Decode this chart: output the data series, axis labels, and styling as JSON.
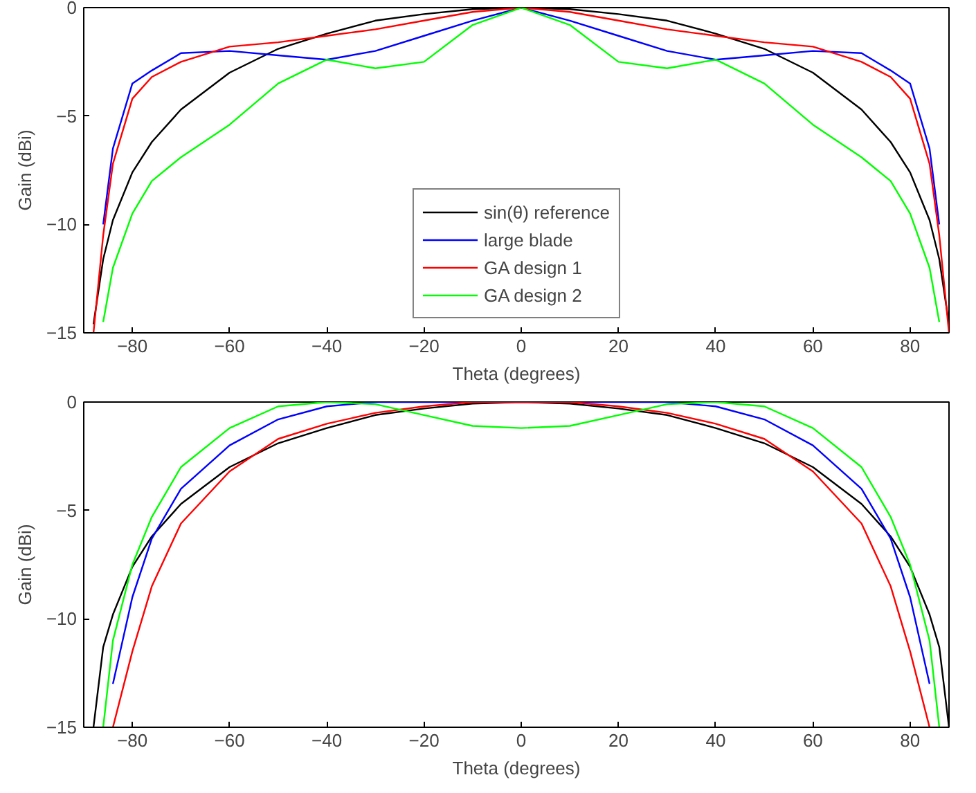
{
  "chart_data": [
    {
      "type": "line",
      "xlabel": "Theta (degrees)",
      "ylabel": "Gain (dBi)",
      "xlim": [
        -90,
        88
      ],
      "ylim": [
        -15,
        0
      ],
      "xticks": [
        -80,
        -60,
        -40,
        -20,
        0,
        20,
        40,
        60,
        80
      ],
      "yticks": [
        -15,
        -10,
        -5,
        0
      ],
      "grid": false,
      "legend": "bottom",
      "line_style": "solid",
      "marker": "none",
      "x": [
        -88,
        -86,
        -84,
        -80,
        -76,
        -70,
        -60,
        -50,
        -40,
        -30,
        -20,
        -10,
        0,
        10,
        20,
        30,
        40,
        50,
        60,
        70,
        76,
        80,
        84,
        86,
        88
      ],
      "series": [
        {
          "name": "sin(θ) reference",
          "color": "#000000",
          "values": [
            -14.6,
            -11.6,
            -9.8,
            -7.6,
            -6.2,
            -4.7,
            -3.0,
            -1.9,
            -1.2,
            -0.6,
            -0.3,
            -0.07,
            0,
            -0.07,
            -0.3,
            -0.6,
            -1.2,
            -1.9,
            -3.0,
            -4.7,
            -6.2,
            -7.6,
            -9.8,
            -11.6,
            -14.6
          ]
        },
        {
          "name": "large blade",
          "color": "#0000ff",
          "values": [
            null,
            -10,
            -6.5,
            -3.5,
            -2.9,
            -2.1,
            -2.0,
            -2.2,
            -2.4,
            -2.0,
            -1.3,
            -0.6,
            0,
            -0.6,
            -1.3,
            -2.0,
            -2.4,
            -2.2,
            -2.0,
            -2.1,
            -2.9,
            -3.5,
            -6.5,
            -10,
            null
          ]
        },
        {
          "name": "GA design 1",
          "color": "#ff0000",
          "values": [
            -15,
            -10.5,
            -7.2,
            -4.2,
            -3.2,
            -2.5,
            -1.8,
            -1.6,
            -1.3,
            -1.0,
            -0.6,
            -0.2,
            0,
            -0.2,
            -0.6,
            -1.0,
            -1.3,
            -1.6,
            -1.8,
            -2.5,
            -3.2,
            -4.2,
            -7.2,
            -10.5,
            -15
          ]
        },
        {
          "name": "GA design 2",
          "color": "#00ff00",
          "values": [
            null,
            -14.5,
            -12,
            -9.5,
            -8.0,
            -6.9,
            -5.4,
            -3.5,
            -2.4,
            -2.8,
            -2.5,
            -0.8,
            0,
            -0.8,
            -2.5,
            -2.8,
            -2.4,
            -3.5,
            -5.4,
            -6.9,
            -8.0,
            -9.5,
            -12,
            -14.5,
            null
          ]
        }
      ]
    },
    {
      "type": "line",
      "xlabel": "Theta (degrees)",
      "ylabel": "Gain (dBi)",
      "xlim": [
        -90,
        88
      ],
      "ylim": [
        -15,
        0
      ],
      "xticks": [
        -80,
        -60,
        -40,
        -20,
        0,
        20,
        40,
        60,
        80
      ],
      "yticks": [
        -15,
        -10,
        -5,
        0
      ],
      "grid": false,
      "legend": false,
      "line_style": "solid",
      "marker": "none",
      "x": [
        -88,
        -86,
        -84,
        -80,
        -76,
        -70,
        -60,
        -50,
        -40,
        -30,
        -20,
        -10,
        0,
        10,
        20,
        30,
        40,
        50,
        60,
        70,
        76,
        80,
        84,
        86,
        88
      ],
      "series": [
        {
          "color": "#000000",
          "values": [
            -15,
            -11.3,
            -9.8,
            -7.6,
            -6.2,
            -4.7,
            -3.0,
            -1.9,
            -1.2,
            -0.6,
            -0.3,
            -0.07,
            0,
            -0.07,
            -0.3,
            -0.6,
            -1.2,
            -1.9,
            -3.0,
            -4.7,
            -6.2,
            -7.6,
            -9.8,
            -11.3,
            -15
          ]
        },
        {
          "color": "#0000ff",
          "values": [
            null,
            null,
            -13,
            -9.0,
            -6.3,
            -4.0,
            -2.0,
            -0.8,
            -0.2,
            0,
            0,
            0,
            0,
            0,
            0,
            0,
            -0.2,
            -0.8,
            -2.0,
            -4.0,
            -6.3,
            -9.0,
            -13,
            null,
            null
          ]
        },
        {
          "color": "#ff0000",
          "values": [
            null,
            null,
            -15,
            -11.5,
            -8.5,
            -5.6,
            -3.2,
            -1.7,
            -1.0,
            -0.5,
            -0.2,
            0,
            0,
            0,
            -0.2,
            -0.5,
            -1.0,
            -1.7,
            -3.2,
            -5.6,
            -8.5,
            -11.5,
            -15,
            null,
            null
          ]
        },
        {
          "color": "#00ff00",
          "values": [
            null,
            -15,
            -11,
            -7.5,
            -5.3,
            -3.0,
            -1.2,
            -0.2,
            0,
            -0.1,
            -0.6,
            -1.1,
            -1.2,
            -1.1,
            -0.6,
            -0.1,
            0,
            -0.2,
            -1.2,
            -3.0,
            -5.3,
            -7.5,
            -11,
            -15,
            null
          ]
        }
      ]
    }
  ]
}
